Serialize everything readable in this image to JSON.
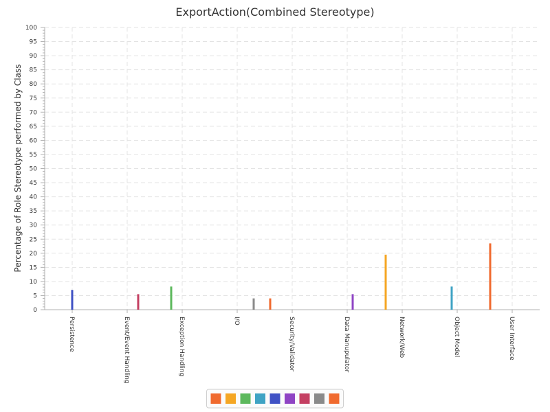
{
  "chart_data": {
    "type": "bar",
    "title": "ExportAction(Combined Stereotype)",
    "xlabel": "",
    "ylabel": "Percentage of Role Stereotype performed by Class",
    "ylim": [
      0,
      100
    ],
    "ytick_step": 5,
    "grid": true,
    "legend_position": "bottom",
    "categories": [
      "Persistence",
      "Event/Event Handling",
      "Exception Handling",
      "I/O",
      "Security/Validator",
      "Data Manupulator",
      "Network/Web",
      "Object Model",
      "User Interface"
    ],
    "series": [
      {
        "color": "#f06a2e",
        "values": [
          0,
          0,
          0,
          0,
          4,
          0,
          0,
          0,
          23.5
        ]
      },
      {
        "color": "#f5a623",
        "values": [
          0,
          0,
          0,
          0,
          0,
          0,
          19.5,
          0,
          0
        ]
      },
      {
        "color": "#5cb85c",
        "values": [
          0,
          0,
          8.2,
          0,
          0,
          0,
          0,
          0,
          0
        ]
      },
      {
        "color": "#3fa3c4",
        "values": [
          0,
          0,
          0,
          0,
          0,
          0,
          0,
          8.2,
          0
        ]
      },
      {
        "color": "#3f51c4",
        "values": [
          7,
          0,
          0,
          0,
          0,
          0,
          0,
          0,
          0
        ]
      },
      {
        "color": "#8f44c4",
        "values": [
          0,
          0,
          0,
          0,
          0,
          5.5,
          0,
          0,
          0
        ]
      },
      {
        "color": "#c43f62",
        "values": [
          0,
          5.5,
          0,
          0,
          0,
          0,
          0,
          0,
          0
        ]
      },
      {
        "color": "#8a8a8a",
        "values": [
          0,
          0,
          0,
          4,
          0,
          0,
          0,
          0,
          0
        ]
      },
      {
        "color": "#f06a2e",
        "values": [
          0,
          0,
          0,
          0,
          0,
          0,
          0,
          0,
          0
        ]
      }
    ]
  }
}
